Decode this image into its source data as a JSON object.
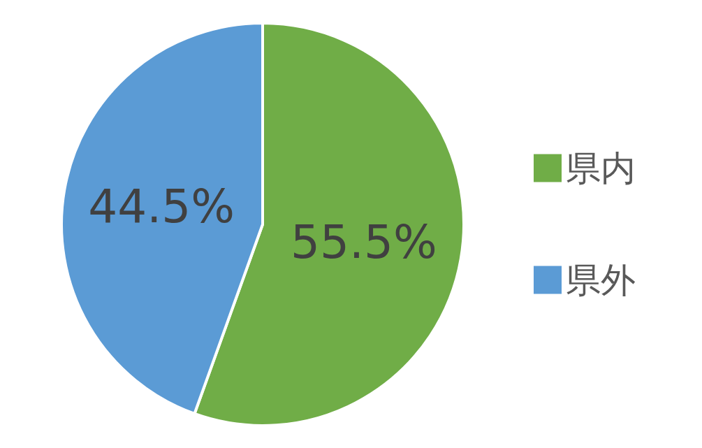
{
  "chart_data": {
    "type": "pie",
    "categories": [
      "県内",
      "県外"
    ],
    "values": [
      55.5,
      44.5
    ],
    "colors": [
      "#70ad47",
      "#5b9bd5"
    ],
    "value_labels": [
      "55.5%",
      "44.5%"
    ],
    "legend": "right"
  }
}
